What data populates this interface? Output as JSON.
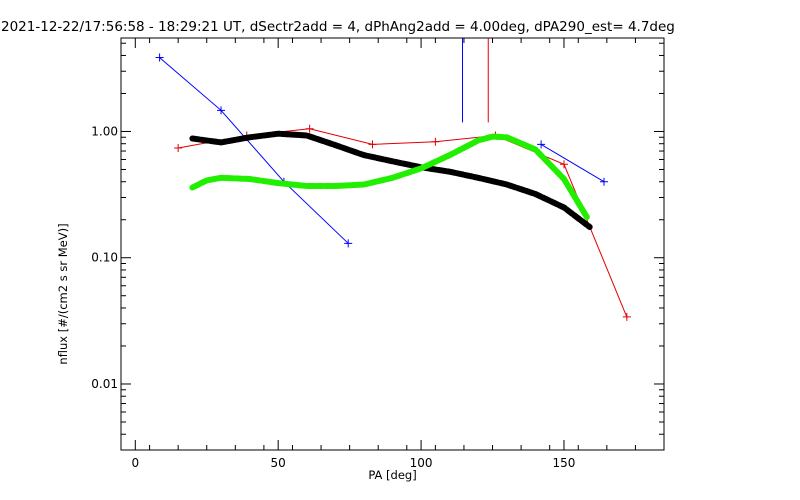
{
  "chart_data": {
    "type": "line",
    "title": "2021-12-22/17:56:58 - 18:29:21 UT, dSectr2add = 4, dPhAng2add = 4.00deg, dPA290_est=   4.7deg",
    "xlabel": "PA [deg]",
    "ylabel": "nflux [#/(cm2 s sr MeV)]",
    "xlim": [
      -5,
      185
    ],
    "ylim": [
      0.003,
      5.5
    ],
    "yscale": "log",
    "grid": false,
    "x_ticks": [
      {
        "value": 0,
        "label": "0"
      },
      {
        "value": 50,
        "label": "50"
      },
      {
        "value": 100,
        "label": "100"
      },
      {
        "value": 150,
        "label": "150"
      }
    ],
    "y_ticks": [
      {
        "value": 0.01,
        "label": "0.01"
      },
      {
        "value": 0.1,
        "label": "0.10"
      },
      {
        "value": 1.0,
        "label": "1.00"
      }
    ],
    "series": [
      {
        "color": "#0000ff",
        "style": "line+plus",
        "segments": [
          {
            "x": [
              8.5,
              30,
              52,
              74.5
            ],
            "y": [
              3.85,
              1.47,
              0.4,
              0.13
            ]
          },
          {
            "x": [
              142,
              164
            ],
            "y": [
              0.79,
              0.4
            ]
          }
        ]
      },
      {
        "color": "#e00000",
        "style": "line+plus",
        "segments": [
          {
            "x": [
              15,
              39,
              61,
              83,
              105,
              126,
              150,
              172
            ],
            "y": [
              0.74,
              0.93,
              1.05,
              0.79,
              0.83,
              0.93,
              0.55,
              0.034
            ]
          }
        ]
      },
      {
        "color": "#000000",
        "style": "thick-dashed",
        "segments": [
          {
            "x": [
              20,
              30,
              40,
              50,
              60,
              70,
              80,
              90,
              100,
              110,
              120,
              130,
              140,
              150,
              159
            ],
            "y": [
              0.88,
              0.82,
              0.9,
              0.96,
              0.93,
              0.78,
              0.65,
              0.58,
              0.52,
              0.48,
              0.43,
              0.38,
              0.32,
              0.25,
              0.175
            ]
          }
        ]
      },
      {
        "color": "#22ee00",
        "style": "thick-dashed",
        "segments": [
          {
            "x": [
              20,
              25,
              30,
              40,
              50,
              60,
              70,
              80,
              90,
              100,
              110,
              120,
              125,
              130,
              140,
              150,
              158
            ],
            "y": [
              0.36,
              0.41,
              0.43,
              0.42,
              0.39,
              0.37,
              0.37,
              0.38,
              0.43,
              0.51,
              0.65,
              0.85,
              0.91,
              0.9,
              0.72,
              0.42,
              0.21
            ]
          }
        ]
      }
    ],
    "vertical_marks": [
      {
        "color": "#0000ff",
        "x": 114.5,
        "y_from": 1.18,
        "y_to": 5.5
      },
      {
        "color": "#e00000",
        "x": 123.5,
        "y_from": 1.18,
        "y_to": 5.5
      }
    ]
  }
}
